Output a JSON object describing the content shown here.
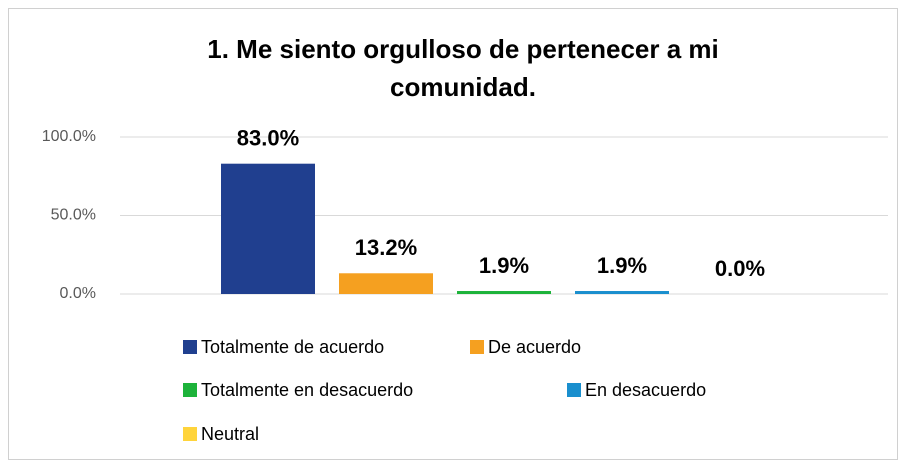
{
  "chart_data": {
    "type": "bar",
    "title": "1. Me siento orgulloso de pertenecer a mi comunidad.",
    "categories": [
      null
    ],
    "series": [
      {
        "name": "Totalmente de acuerdo",
        "color": "#203f8f",
        "values": [
          83
        ],
        "value_labels": [
          "83.0%"
        ]
      },
      {
        "name": "De acuerdo",
        "color": "#f5a020",
        "values": [
          13.2
        ],
        "value_labels": [
          "13.2%"
        ]
      },
      {
        "name": "Totalmente en desacuerdo",
        "color": "#1db33a",
        "values": [
          1.9
        ],
        "value_labels": [
          "1.9%"
        ]
      },
      {
        "name": "En desacuerdo",
        "color": "#1a8fce",
        "values": [
          1.9
        ],
        "value_labels": [
          "1.9%"
        ]
      },
      {
        "name": "Neutral",
        "color": "#ffd43b",
        "values": [
          0
        ],
        "value_labels": [
          "0.0%"
        ]
      }
    ],
    "ylim": [
      0,
      100
    ],
    "yticks": [
      {
        "value": 0,
        "label": "0.0%"
      },
      {
        "value": 50,
        "label": "50.0%"
      },
      {
        "value": 100,
        "label": "100.0%"
      }
    ],
    "grid": true,
    "legend": "bottom"
  }
}
